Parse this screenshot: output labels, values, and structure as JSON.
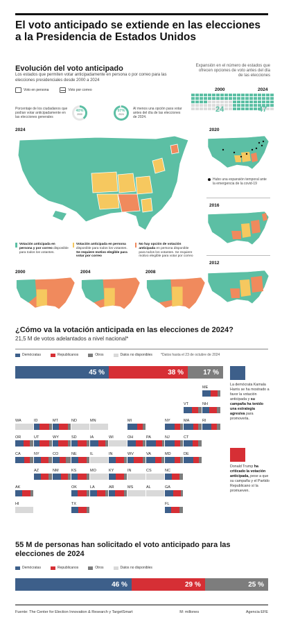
{
  "title": "El voto anticipado se extiende en las elecciones a la Presidencia de Estados Unidos",
  "section1": {
    "title": "Evolución del voto anticipado",
    "subtitle": "Los estados que permiten votar anticipadamente en persona o por correo para las elecciones presidenciales desde 2000 a 2024",
    "legend_in_person": "Voto en persona",
    "legend_mail": "Voto por correo",
    "stat1_text": "Porcentaje de los ciudadanos que podían votar anticipadamente en las elecciones generales",
    "stat1_a_value": "40%",
    "stat1_a_year": "2000",
    "stat1_a_fraction": 0.4,
    "stat1_b_text": "Al menos una opción para votar antes del día de las elecciones de 2024.",
    "stat1_b_value": "97%",
    "stat1_b_year": "2024",
    "stat1_b_fraction": 0.97,
    "expansion_text": "Expansión en el número de estados que ofrecen opciones de voto antes del día de las elecciones",
    "exp_year_a": "2000",
    "exp_count_a": "24",
    "exp_year_b": "2024",
    "exp_count_b": "47",
    "main_map_year": "2024",
    "map_2020": "2020",
    "map_2020_note": "Hubo una expansión temporal ante la emergencia de la covid-19",
    "map_2016": "2016",
    "map_2012": "2012",
    "map_2000": "2000",
    "map_2004": "2004",
    "map_2008": "2008",
    "legend_green_bold": "Votación anticipada en persona y por correo",
    "legend_green_rest": "disponible para todos los votantes.",
    "legend_yellow_bold": "Votación anticipada en persona",
    "legend_yellow_rest": "disponible para todos los votantes.",
    "legend_yellow_bold2": "Se requiere motivo elegible para votar por correo",
    "legend_red_bold": "No hay opción de votación anticipada",
    "legend_red_rest": "en persona disponible para todos los votantes. Se requiere motivo elegible para votar por correo"
  },
  "section2": {
    "title": "¿Cómo va la votación anticipada en las elecciones de 2024?",
    "subtitle": "21,5 M de votos adelantados a nivel nacional*",
    "key": [
      "Demócratas",
      "Republicanos",
      "Otros",
      "Datos no disponibles"
    ],
    "date_note": "*Datos hasta el 23 de octubre de 2024",
    "bar": [
      {
        "party": "dem",
        "label": "45 %",
        "value": 45
      },
      {
        "party": "rep",
        "label": "38 %",
        "value": 38
      },
      {
        "party": "oth",
        "label": "17 %",
        "value": 17
      }
    ],
    "note_harris_1": "La demócrata Kamala Harris se ha mostrado a favor la votación anticipada y",
    "note_harris_bold": "su campaña ha tenido una estrategia agresiva",
    "note_harris_2": "para promoverla.",
    "note_trump_1": "Donald Trump",
    "note_trump_bold": "ha criticado la votación anticipada,",
    "note_trump_2": "pese a que su campaña y el Partido Republicano sí la promueven.",
    "states": [
      {
        "s": "ME",
        "d": [
          46,
          37,
          17
        ]
      },
      {
        "s": "VT",
        "d": [
          47,
          33,
          20
        ]
      },
      {
        "s": "NH",
        "d": [
          40,
          40,
          20
        ]
      },
      {
        "s": "WA",
        "d": null
      },
      {
        "s": "ID",
        "d": [
          30,
          55,
          15
        ]
      },
      {
        "s": "MT",
        "d": [
          35,
          50,
          15
        ]
      },
      {
        "s": "ND",
        "d": null
      },
      {
        "s": "MN",
        "d": null
      },
      {
        "s": "MI",
        "d": [
          55,
          30,
          15
        ]
      },
      {
        "s": "NY",
        "d": [
          55,
          30,
          15
        ]
      },
      {
        "s": "MA",
        "d": [
          55,
          25,
          20
        ]
      },
      {
        "s": "RI",
        "d": [
          50,
          30,
          20
        ]
      },
      {
        "s": "OR",
        "d": [
          45,
          35,
          20
        ]
      },
      {
        "s": "UT",
        "d": [
          30,
          55,
          15
        ]
      },
      {
        "s": "WY",
        "d": [
          30,
          55,
          15
        ]
      },
      {
        "s": "SD",
        "d": [
          35,
          50,
          15
        ]
      },
      {
        "s": "IA",
        "d": [
          45,
          40,
          15
        ]
      },
      {
        "s": "WI",
        "d": null
      },
      {
        "s": "OH",
        "d": [
          45,
          40,
          15
        ]
      },
      {
        "s": "PA",
        "d": [
          55,
          35,
          10
        ]
      },
      {
        "s": "NJ",
        "d": [
          55,
          30,
          15
        ]
      },
      {
        "s": "CT",
        "d": [
          50,
          30,
          20
        ]
      },
      {
        "s": "CA",
        "d": [
          50,
          30,
          20
        ]
      },
      {
        "s": "NV",
        "d": [
          40,
          40,
          20
        ]
      },
      {
        "s": "CO",
        "d": [
          40,
          35,
          25
        ]
      },
      {
        "s": "NE",
        "d": [
          40,
          45,
          15
        ]
      },
      {
        "s": "IL",
        "d": null
      },
      {
        "s": "IN",
        "d": [
          40,
          45,
          15
        ]
      },
      {
        "s": "WV",
        "d": [
          35,
          50,
          15
        ]
      },
      {
        "s": "VA",
        "d": [
          50,
          35,
          15
        ]
      },
      {
        "s": "MD",
        "d": [
          55,
          30,
          15
        ]
      },
      {
        "s": "DE",
        "d": [
          55,
          30,
          15
        ]
      },
      {
        "s": "AZ",
        "d": [
          40,
          42,
          18
        ]
      },
      {
        "s": "NM",
        "d": [
          45,
          40,
          15
        ]
      },
      {
        "s": "KS",
        "d": [
          35,
          50,
          15
        ]
      },
      {
        "s": "MO",
        "d": null
      },
      {
        "s": "KY",
        "d": [
          40,
          45,
          15
        ]
      },
      {
        "s": "IN2",
        "d": null
      },
      {
        "s": "CS",
        "d": null
      },
      {
        "s": "NC",
        "d": [
          40,
          40,
          20
        ]
      },
      {
        "s": "AK",
        "d": [
          40,
          45,
          15
        ]
      },
      {
        "s": "OK",
        "d": [
          35,
          50,
          15
        ]
      },
      {
        "s": "LA",
        "d": [
          40,
          45,
          15
        ]
      },
      {
        "s": "AR",
        "d": [
          35,
          50,
          15
        ]
      },
      {
        "s": "MS",
        "d": null
      },
      {
        "s": "AL",
        "d": null
      },
      {
        "s": "GA",
        "d": [
          45,
          45,
          10
        ]
      },
      {
        "s": "HI",
        "d": null
      },
      {
        "s": "TX",
        "d": [
          40,
          45,
          15
        ]
      },
      {
        "s": "FL",
        "d": [
          35,
          45,
          20
        ]
      }
    ]
  },
  "section3": {
    "title": "55 M de personas han solicitado el voto anticipado para las elecciones de 2024",
    "key": [
      "Demócratas",
      "Republicanos",
      "Otros",
      "Datos no disponibles"
    ],
    "bar": [
      {
        "party": "dem",
        "label": "46 %",
        "value": 46
      },
      {
        "party": "rep",
        "label": "29 %",
        "value": 29
      },
      {
        "party": "oth",
        "label": "25 %",
        "value": 25
      }
    ]
  },
  "footer": {
    "source": "Fuente: The Center for Election Innovation & Research y TargetSmart",
    "units": "M: millones",
    "agency": "Agencia EFE"
  },
  "colors": {
    "green": "#5cbfa4",
    "yellow": "#f6c85f",
    "red": "#f08a5d",
    "dem": "#3d5f8a",
    "rep": "#d62f35",
    "oth": "#7d7d7d",
    "na": "#d9d9d9"
  }
}
